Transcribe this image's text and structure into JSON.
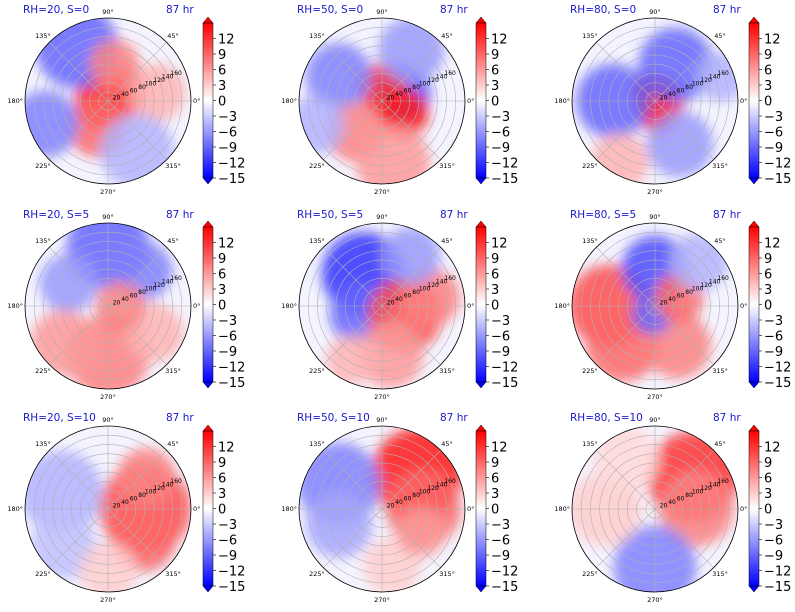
{
  "figure": {
    "panel_labels": [
      "RH=20, S=0",
      "RH=50, S=0",
      "RH=80, S=0",
      "RH=20, S=5",
      "RH=50, S=5",
      "RH=80, S=5",
      "RH=20, S=10",
      "RH=50, S=10",
      "RH=80, S=10"
    ],
    "time_label": "87 hr",
    "title_color": "#1a1acc"
  },
  "chart_data": {
    "type": "heatmap",
    "projection": "polar",
    "grid": true,
    "angle_ticks": [
      "0°",
      "45°",
      "90°",
      "135°",
      "180°",
      "225°",
      "270°",
      "315°"
    ],
    "radius_ticks": [
      "20",
      "40",
      "60",
      "80",
      "100",
      "120",
      "140",
      "160"
    ],
    "radius_range": [
      0,
      180
    ],
    "colorbar": {
      "ticks": [
        "12",
        "9",
        "6",
        "3",
        "0",
        "−3",
        "−6",
        "−9",
        "−12",
        "−15"
      ],
      "range": [
        -15,
        15
      ],
      "extend": "both",
      "colormap": "bwr",
      "colors": {
        "low": "#0000ff",
        "mid": "#ffffff",
        "high": "#ff0000"
      }
    },
    "panels": [
      {
        "rh": 20,
        "s": 0,
        "pattern": "red spiral core with blue outer band"
      },
      {
        "rh": 50,
        "s": 0,
        "pattern": "mixed red and blue spiral bands"
      },
      {
        "rh": 80,
        "s": 0,
        "pattern": "strong red core ring with blue surroundings"
      },
      {
        "rh": 20,
        "s": 5,
        "pattern": "blue north, red south"
      },
      {
        "rh": 50,
        "s": 5,
        "pattern": "blue northwest, red southeast"
      },
      {
        "rh": 80,
        "s": 5,
        "pattern": "red west and south, blue center"
      },
      {
        "rh": 20,
        "s": 10,
        "pattern": "red east, pale blue west"
      },
      {
        "rh": 50,
        "s": 10,
        "pattern": "strong red northeast, blue west"
      },
      {
        "rh": 80,
        "s": 10,
        "pattern": "red northeast, blue south"
      }
    ]
  }
}
